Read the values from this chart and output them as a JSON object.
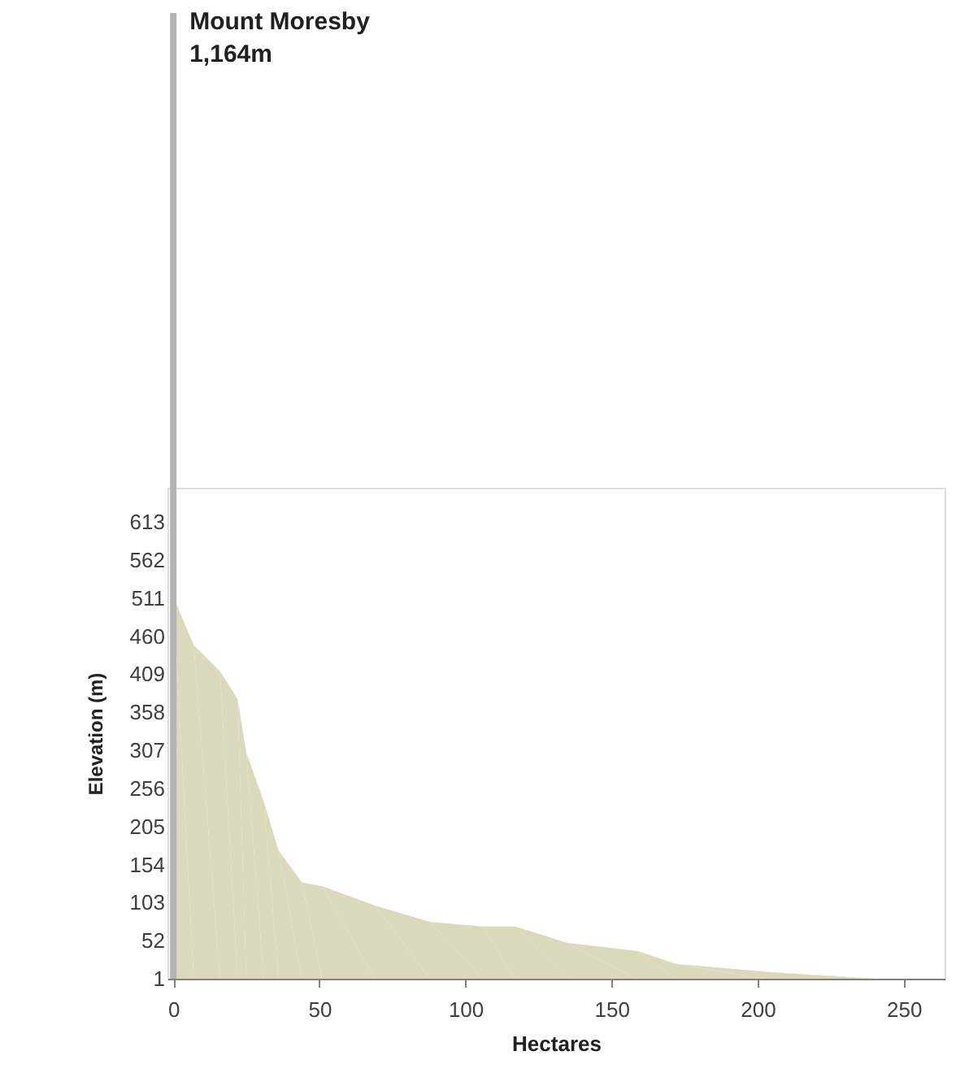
{
  "chart_data": {
    "type": "area",
    "xlabel": "Hectares",
    "ylabel": "Elevation (m)",
    "x": [
      0,
      7,
      16,
      22,
      25,
      31,
      36,
      44,
      51,
      69,
      88,
      106,
      117,
      135,
      159,
      172,
      204,
      241
    ],
    "series": [
      {
        "color": "#dcd8bc",
        "values": [
          513,
          448,
          413,
          376,
          304,
          238,
          173,
          130,
          125,
          99,
          77,
          71,
          71,
          49,
          38,
          21,
          10,
          1
        ]
      }
    ],
    "xlim": [
      -2,
      264
    ],
    "xticks": [
      0,
      50,
      100,
      150,
      200,
      250
    ],
    "ylim": [
      1,
      659
    ],
    "yticks": [
      1,
      52,
      103,
      154,
      205,
      256,
      307,
      358,
      409,
      460,
      511,
      562,
      613
    ],
    "ref_lines": [
      {
        "axis": "x",
        "value": 0,
        "label": "Mount Moresby\n1,164m",
        "color": "#b4b4b4"
      }
    ],
    "grid": false
  }
}
